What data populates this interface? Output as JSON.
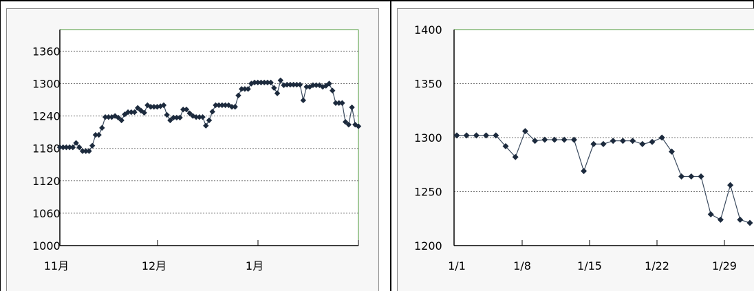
{
  "chart_data": [
    {
      "type": "line",
      "title": "",
      "xlabel": "",
      "ylabel": "",
      "ylim": [
        1000,
        1400
      ],
      "yticks": [
        "1000",
        "1060",
        "1120",
        "1180",
        "1240",
        "1300",
        "1360"
      ],
      "xticks": [
        "11月",
        "12月",
        "1月"
      ],
      "grid": true,
      "series": [
        {
          "values": [
            1182,
            1182,
            1182,
            1182,
            1182,
            1190,
            1182,
            1175,
            1175,
            1175,
            1185,
            1205,
            1205,
            1218,
            1238,
            1238,
            1238,
            1240,
            1237,
            1232,
            1243,
            1247,
            1247,
            1247,
            1255,
            1250,
            1246,
            1260,
            1257,
            1257,
            1257,
            1258,
            1260,
            1242,
            1232,
            1237,
            1237,
            1237,
            1252,
            1252,
            1245,
            1240,
            1238,
            1238,
            1238,
            1222,
            1232,
            1248,
            1260,
            1260,
            1260,
            1260,
            1260,
            1257,
            1257,
            1278,
            1290,
            1290,
            1290,
            1300,
            1302,
            1302,
            1302,
            1302,
            1302,
            1302,
            1292,
            1282,
            1306,
            1297,
            1298,
            1298,
            1298,
            1298,
            1298,
            1269,
            1294,
            1294,
            1297,
            1297,
            1297,
            1294,
            1296,
            1300,
            1287,
            1264,
            1264,
            1264,
            1229,
            1224,
            1256,
            1224,
            1221
          ]
        }
      ]
    },
    {
      "type": "line",
      "title": "",
      "xlabel": "",
      "ylabel": "",
      "ylim": [
        1200,
        1400
      ],
      "yticks": [
        "1200",
        "1250",
        "1300",
        "1350",
        "1400"
      ],
      "xticks": [
        "1/1",
        "1/8",
        "1/15",
        "1/22",
        "1/29"
      ],
      "grid": true,
      "series": [
        {
          "values": [
            1302,
            1302,
            1302,
            1302,
            1302,
            1292,
            1282,
            1306,
            1297,
            1298,
            1298,
            1298,
            1298,
            1269,
            1294,
            1294,
            1297,
            1297,
            1297,
            1294,
            1296,
            1300,
            1287,
            1264,
            1264,
            1264,
            1229,
            1224,
            1256,
            1224,
            1221
          ]
        }
      ]
    }
  ]
}
